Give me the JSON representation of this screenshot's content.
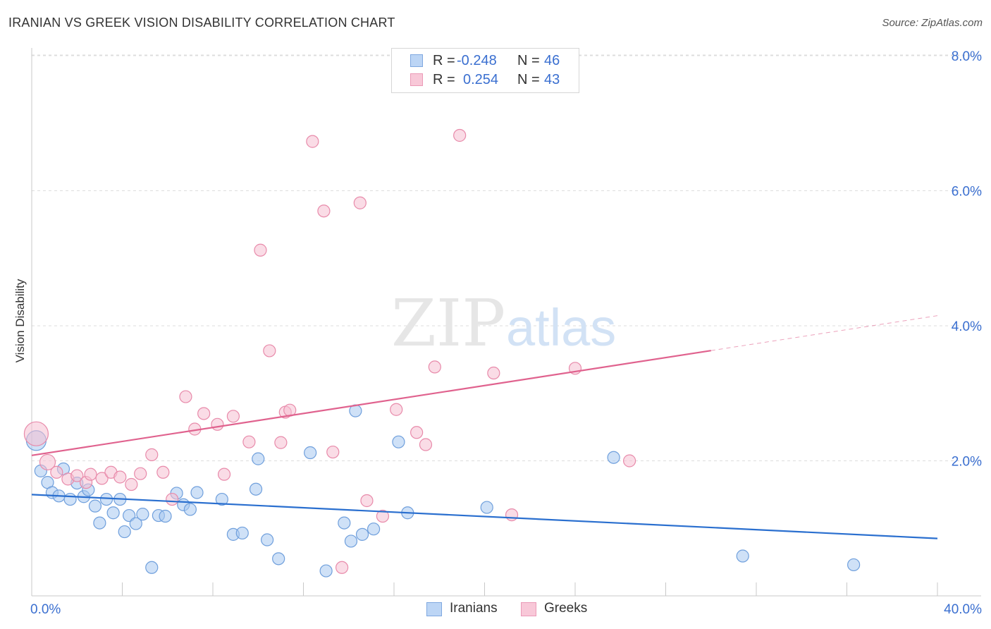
{
  "header": {
    "title": "IRANIAN VS GREEK VISION DISABILITY CORRELATION CHART",
    "source": "Source: ZipAtlas.com"
  },
  "legend": {
    "rows": [
      {
        "r_label": "R =",
        "r_value": "-0.248",
        "n_label": "N =",
        "n_value": "46",
        "color": "#a8c8f0"
      },
      {
        "r_label": "R =",
        "r_value": "0.254",
        "n_label": "N =",
        "n_value": "43",
        "color": "#f5b8cc"
      }
    ]
  },
  "bottom_legend": [
    "Iranians",
    "Greeks"
  ],
  "watermark": {
    "zip": "ZIP",
    "atlas": "atlas"
  },
  "colors": {
    "iranians_fill": "#a8c8f0",
    "iranians_stroke": "#6f9fdc",
    "iranians_line": "#2a6fcf",
    "greeks_fill": "#f5c0d2",
    "greeks_stroke": "#e88aaa",
    "greeks_line": "#e0628e",
    "tick_label": "#3a6fd0",
    "grid": "#dddddd"
  },
  "chart_data": {
    "type": "scatter",
    "title": "IRANIAN VS GREEK VISION DISABILITY CORRELATION CHART",
    "xlabel": "",
    "ylabel": "Vision Disability",
    "xlim": [
      0,
      40
    ],
    "ylim": [
      0,
      8.0
    ],
    "x_tick_labels": [
      "0.0%",
      "40.0%"
    ],
    "y_ticks": [
      2.0,
      4.0,
      6.0,
      8.0
    ],
    "y_tick_labels": [
      "2.0%",
      "4.0%",
      "6.0%",
      "8.0%"
    ],
    "grid": "horizontal dashed",
    "legend_position": "top-center",
    "series": [
      {
        "name": "Iranians",
        "r": -0.248,
        "n": 46,
        "trend": {
          "x0": 0,
          "y0": 1.5,
          "x1": 40,
          "y1": 0.85
        },
        "points": [
          [
            0.2,
            2.3
          ],
          [
            0.4,
            1.85
          ],
          [
            0.7,
            1.68
          ],
          [
            0.9,
            1.53
          ],
          [
            1.2,
            1.48
          ],
          [
            1.4,
            1.88
          ],
          [
            1.7,
            1.43
          ],
          [
            2.0,
            1.67
          ],
          [
            2.3,
            1.47
          ],
          [
            2.5,
            1.57
          ],
          [
            2.8,
            1.33
          ],
          [
            3.0,
            1.08
          ],
          [
            3.3,
            1.43
          ],
          [
            3.6,
            1.23
          ],
          [
            3.9,
            1.43
          ],
          [
            4.1,
            0.95
          ],
          [
            4.3,
            1.19
          ],
          [
            4.6,
            1.07
          ],
          [
            4.9,
            1.21
          ],
          [
            5.3,
            0.42
          ],
          [
            5.6,
            1.19
          ],
          [
            5.9,
            1.18
          ],
          [
            6.4,
            1.52
          ],
          [
            6.7,
            1.35
          ],
          [
            7.0,
            1.28
          ],
          [
            7.3,
            1.53
          ],
          [
            8.4,
            1.43
          ],
          [
            8.9,
            0.91
          ],
          [
            9.3,
            0.93
          ],
          [
            9.9,
            1.58
          ],
          [
            10.0,
            2.03
          ],
          [
            10.4,
            0.83
          ],
          [
            10.9,
            0.55
          ],
          [
            12.3,
            2.12
          ],
          [
            13.0,
            0.37
          ],
          [
            13.8,
            1.08
          ],
          [
            14.1,
            0.81
          ],
          [
            14.3,
            2.74
          ],
          [
            14.6,
            0.91
          ],
          [
            15.1,
            0.99
          ],
          [
            16.2,
            2.28
          ],
          [
            16.6,
            1.23
          ],
          [
            20.1,
            1.31
          ],
          [
            25.7,
            2.05
          ],
          [
            31.4,
            0.59
          ],
          [
            36.3,
            0.46
          ]
        ]
      },
      {
        "name": "Greeks",
        "r": 0.254,
        "n": 43,
        "trend": {
          "x0": 0,
          "y0": 2.08,
          "x1": 40,
          "y1": 4.15,
          "solid_until_x": 30.0
        },
        "points": [
          [
            0.2,
            2.4
          ],
          [
            0.7,
            1.98
          ],
          [
            1.1,
            1.83
          ],
          [
            1.6,
            1.73
          ],
          [
            2.0,
            1.78
          ],
          [
            2.4,
            1.68
          ],
          [
            2.6,
            1.8
          ],
          [
            3.1,
            1.74
          ],
          [
            3.5,
            1.83
          ],
          [
            3.9,
            1.76
          ],
          [
            4.4,
            1.65
          ],
          [
            4.8,
            1.81
          ],
          [
            5.3,
            2.09
          ],
          [
            5.8,
            1.83
          ],
          [
            6.2,
            1.43
          ],
          [
            6.8,
            2.95
          ],
          [
            7.2,
            2.47
          ],
          [
            7.6,
            2.7
          ],
          [
            8.2,
            2.54
          ],
          [
            8.5,
            1.8
          ],
          [
            8.9,
            2.66
          ],
          [
            9.6,
            2.28
          ],
          [
            10.1,
            5.12
          ],
          [
            10.5,
            3.63
          ],
          [
            11.0,
            2.27
          ],
          [
            11.2,
            2.72
          ],
          [
            11.4,
            2.75
          ],
          [
            12.4,
            6.73
          ],
          [
            12.9,
            5.7
          ],
          [
            13.3,
            2.13
          ],
          [
            13.7,
            0.42
          ],
          [
            14.5,
            5.82
          ],
          [
            14.8,
            1.41
          ],
          [
            15.5,
            1.18
          ],
          [
            16.1,
            2.76
          ],
          [
            17.0,
            2.42
          ],
          [
            17.4,
            2.24
          ],
          [
            17.8,
            3.39
          ],
          [
            18.9,
            6.82
          ],
          [
            20.4,
            3.3
          ],
          [
            21.2,
            1.2
          ],
          [
            24.0,
            3.37
          ],
          [
            26.4,
            2.0
          ]
        ]
      }
    ]
  }
}
